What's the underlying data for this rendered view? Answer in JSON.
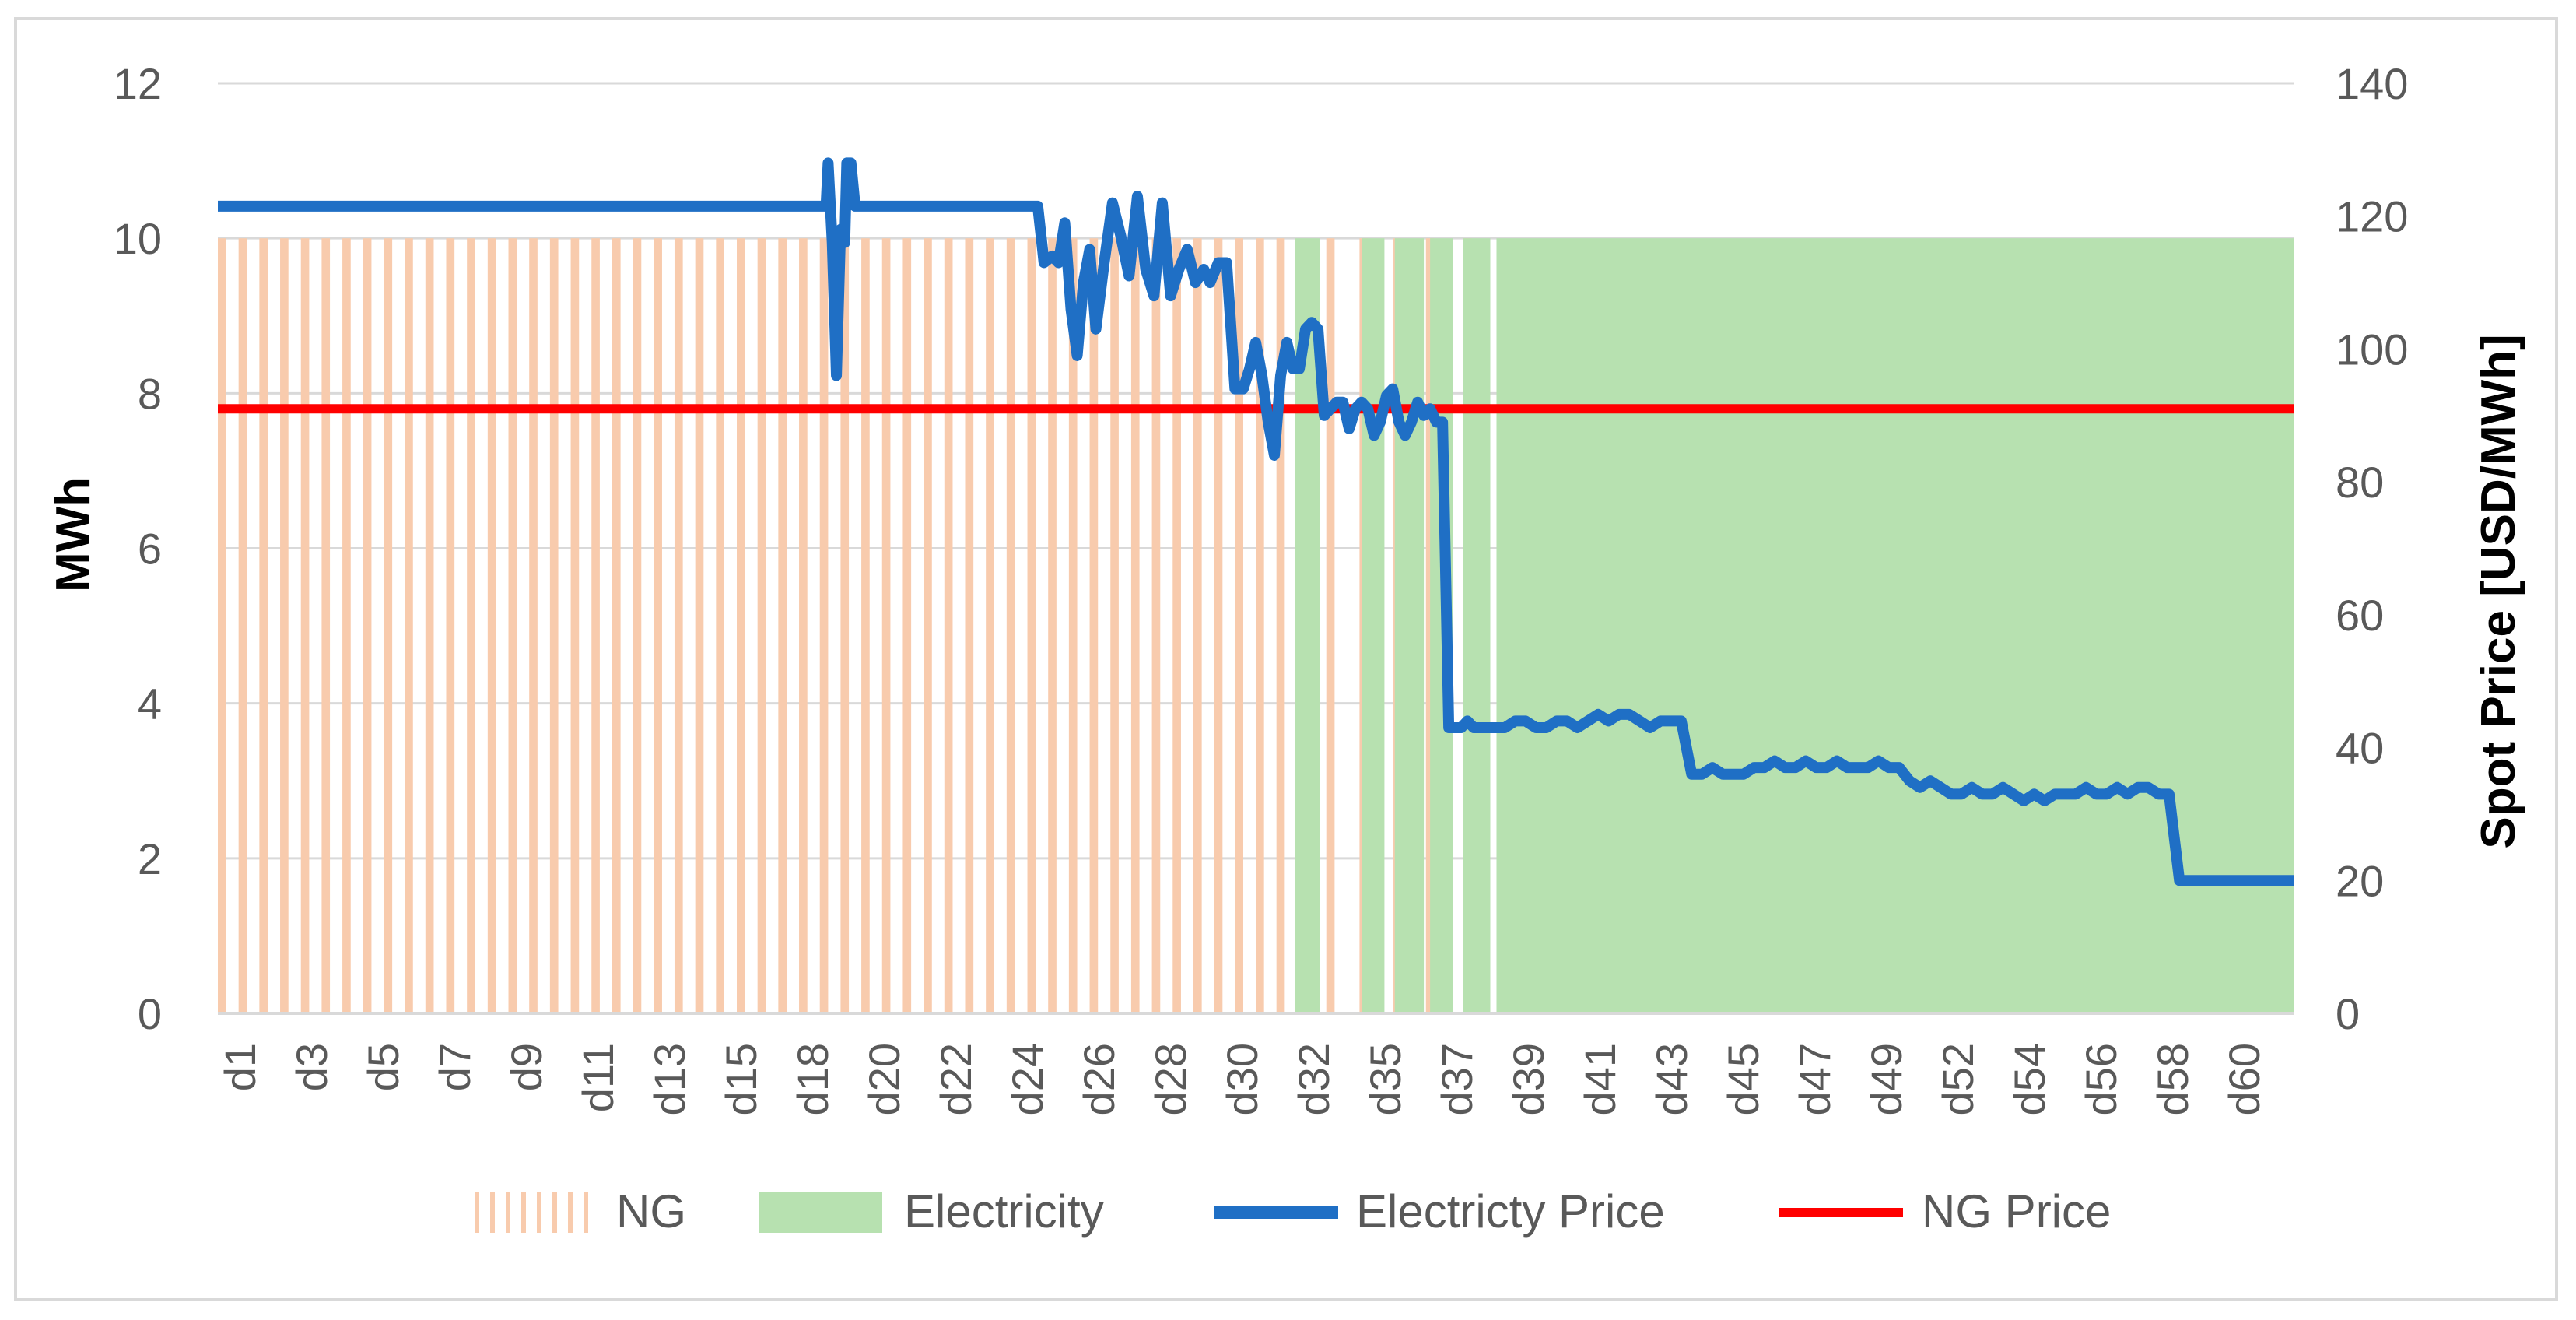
{
  "chart_data": {
    "type": "bar+line",
    "title": "",
    "categories": [
      "d1",
      "d2",
      "d3",
      "d4",
      "d5",
      "d6",
      "d7",
      "d8",
      "d9",
      "d10",
      "d11",
      "d12",
      "d13",
      "d14",
      "d15",
      "d16",
      "d17",
      "d18",
      "d19",
      "d20",
      "d21",
      "d22",
      "d23",
      "d24",
      "d25",
      "d26",
      "d27",
      "d28",
      "d29",
      "d30",
      "d31",
      "d32",
      "d33",
      "d34",
      "d35",
      "d36",
      "d37",
      "d38",
      "d39",
      "d40",
      "d41",
      "d42",
      "d43",
      "d44",
      "d45",
      "d46",
      "d47",
      "d48",
      "d49",
      "d50",
      "d51",
      "d52",
      "d53",
      "d54",
      "d55",
      "d56",
      "d57",
      "d58",
      "d59",
      "d60",
      "d61"
    ],
    "tick_labels": [
      "d1",
      "d3",
      "d5",
      "d7",
      "d9",
      "d11",
      "d13",
      "d15",
      "d18",
      "d20",
      "d22",
      "d24",
      "d26",
      "d28",
      "d30",
      "d32",
      "d35",
      "d37",
      "d39",
      "d41",
      "d43",
      "d45",
      "d47",
      "d49",
      "d52",
      "d54",
      "d56",
      "d58",
      "d60"
    ],
    "left_axis": {
      "label": "MWh",
      "min": 0,
      "max": 12,
      "step": 2,
      "ticks": [
        "0",
        "2",
        "4",
        "6",
        "8",
        "10",
        "12"
      ]
    },
    "right_axis": {
      "label": "Spot Price [USD/MWh]",
      "min": 0,
      "max": 140,
      "step": 20,
      "ticks": [
        "0",
        "20",
        "40",
        "60",
        "80",
        "100",
        "120",
        "140"
      ]
    },
    "series": [
      {
        "name": "NG",
        "kind": "bar",
        "axis": "left",
        "color": "#f8cbad",
        "note": "NG hatched bars occupy the domain 0.0-0.519; each value is 10 MWh",
        "bars": [
          {
            "x0": 0.0,
            "x1": 0.004,
            "v": 10
          },
          {
            "x0": 0.01,
            "x1": 0.014,
            "v": 10
          },
          {
            "x0": 0.02,
            "x1": 0.024,
            "v": 10
          },
          {
            "x0": 0.03,
            "x1": 0.034,
            "v": 10
          },
          {
            "x0": 0.04,
            "x1": 0.044,
            "v": 10
          },
          {
            "x0": 0.05,
            "x1": 0.054,
            "v": 10
          },
          {
            "x0": 0.06,
            "x1": 0.064,
            "v": 10
          },
          {
            "x0": 0.07,
            "x1": 0.074,
            "v": 10
          },
          {
            "x0": 0.08,
            "x1": 0.084,
            "v": 10
          },
          {
            "x0": 0.09,
            "x1": 0.094,
            "v": 10
          },
          {
            "x0": 0.1,
            "x1": 0.104,
            "v": 10
          },
          {
            "x0": 0.11,
            "x1": 0.114,
            "v": 10
          },
          {
            "x0": 0.12,
            "x1": 0.124,
            "v": 10
          },
          {
            "x0": 0.13,
            "x1": 0.134,
            "v": 10
          },
          {
            "x0": 0.14,
            "x1": 0.144,
            "v": 10
          },
          {
            "x0": 0.15,
            "x1": 0.154,
            "v": 10
          },
          {
            "x0": 0.16,
            "x1": 0.164,
            "v": 10
          },
          {
            "x0": 0.17,
            "x1": 0.174,
            "v": 10
          },
          {
            "x0": 0.18,
            "x1": 0.184,
            "v": 10
          },
          {
            "x0": 0.19,
            "x1": 0.194,
            "v": 10
          },
          {
            "x0": 0.2,
            "x1": 0.204,
            "v": 10
          },
          {
            "x0": 0.21,
            "x1": 0.214,
            "v": 10
          },
          {
            "x0": 0.22,
            "x1": 0.224,
            "v": 10
          },
          {
            "x0": 0.23,
            "x1": 0.234,
            "v": 10
          },
          {
            "x0": 0.24,
            "x1": 0.244,
            "v": 10
          },
          {
            "x0": 0.25,
            "x1": 0.254,
            "v": 10
          },
          {
            "x0": 0.26,
            "x1": 0.264,
            "v": 10
          },
          {
            "x0": 0.27,
            "x1": 0.274,
            "v": 10
          },
          {
            "x0": 0.28,
            "x1": 0.284,
            "v": 10
          },
          {
            "x0": 0.29,
            "x1": 0.294,
            "v": 10
          },
          {
            "x0": 0.3,
            "x1": 0.304,
            "v": 10
          },
          {
            "x0": 0.31,
            "x1": 0.314,
            "v": 10
          },
          {
            "x0": 0.32,
            "x1": 0.324,
            "v": 10
          },
          {
            "x0": 0.33,
            "x1": 0.334,
            "v": 10
          },
          {
            "x0": 0.34,
            "x1": 0.344,
            "v": 10
          },
          {
            "x0": 0.35,
            "x1": 0.354,
            "v": 10
          },
          {
            "x0": 0.36,
            "x1": 0.364,
            "v": 10
          },
          {
            "x0": 0.37,
            "x1": 0.374,
            "v": 10
          },
          {
            "x0": 0.38,
            "x1": 0.384,
            "v": 10
          },
          {
            "x0": 0.39,
            "x1": 0.394,
            "v": 10
          },
          {
            "x0": 0.4,
            "x1": 0.404,
            "v": 10
          },
          {
            "x0": 0.41,
            "x1": 0.414,
            "v": 10
          },
          {
            "x0": 0.42,
            "x1": 0.424,
            "v": 10
          },
          {
            "x0": 0.43,
            "x1": 0.434,
            "v": 10
          },
          {
            "x0": 0.44,
            "x1": 0.444,
            "v": 10
          },
          {
            "x0": 0.45,
            "x1": 0.454,
            "v": 10
          },
          {
            "x0": 0.46,
            "x1": 0.464,
            "v": 10
          },
          {
            "x0": 0.47,
            "x1": 0.474,
            "v": 10
          },
          {
            "x0": 0.48,
            "x1": 0.484,
            "v": 10
          },
          {
            "x0": 0.49,
            "x1": 0.494,
            "v": 10
          },
          {
            "x0": 0.5,
            "x1": 0.504,
            "v": 10
          },
          {
            "x0": 0.51,
            "x1": 0.514,
            "v": 10
          },
          {
            "x0": 0.534,
            "x1": 0.538,
            "v": 10
          },
          {
            "x0": 0.55,
            "x1": 0.554,
            "v": 10
          },
          {
            "x0": 0.566,
            "x1": 0.57,
            "v": 10
          },
          {
            "x0": 0.582,
            "x1": 0.586,
            "v": 10
          },
          {
            "x0": 0.6,
            "x1": 0.604,
            "v": 10
          }
        ]
      },
      {
        "name": "Electricity",
        "kind": "bar",
        "axis": "left",
        "color": "#b7e1b0",
        "bars": [
          {
            "x0": 0.519,
            "x1": 0.531,
            "v": 10
          },
          {
            "x0": 0.551,
            "x1": 0.562,
            "v": 10
          },
          {
            "x0": 0.567,
            "x1": 0.581,
            "v": 10
          },
          {
            "x0": 0.584,
            "x1": 0.595,
            "v": 10
          },
          {
            "x0": 0.6,
            "x1": 0.613,
            "v": 10
          },
          {
            "x0": 0.616,
            "x1": 1.0,
            "v": 10
          }
        ]
      },
      {
        "name": "Electricty Price",
        "kind": "line",
        "axis": "right",
        "color": "#1f6fc5",
        "points": [
          [
            0.0,
            121.5
          ],
          [
            0.293,
            121.5
          ],
          [
            0.294,
            128
          ],
          [
            0.296,
            116
          ],
          [
            0.298,
            96
          ],
          [
            0.3,
            118
          ],
          [
            0.302,
            116
          ],
          [
            0.303,
            128
          ],
          [
            0.305,
            128
          ],
          [
            0.307,
            121.5
          ],
          [
            0.31,
            121.5
          ],
          [
            0.395,
            121.5
          ],
          [
            0.398,
            113
          ],
          [
            0.402,
            114
          ],
          [
            0.405,
            113
          ],
          [
            0.408,
            119
          ],
          [
            0.411,
            106
          ],
          [
            0.414,
            99
          ],
          [
            0.417,
            110
          ],
          [
            0.42,
            115
          ],
          [
            0.423,
            103
          ],
          [
            0.427,
            113
          ],
          [
            0.431,
            122
          ],
          [
            0.435,
            117
          ],
          [
            0.439,
            111
          ],
          [
            0.443,
            123
          ],
          [
            0.447,
            112
          ],
          [
            0.451,
            108
          ],
          [
            0.455,
            122
          ],
          [
            0.459,
            108
          ],
          [
            0.463,
            112
          ],
          [
            0.467,
            115
          ],
          [
            0.471,
            110
          ],
          [
            0.475,
            112
          ],
          [
            0.478,
            110
          ],
          [
            0.482,
            113
          ],
          [
            0.486,
            113
          ],
          [
            0.49,
            94
          ],
          [
            0.494,
            94
          ],
          [
            0.497,
            97
          ],
          [
            0.5,
            101
          ],
          [
            0.503,
            96
          ],
          [
            0.506,
            89
          ],
          [
            0.509,
            84
          ],
          [
            0.512,
            96
          ],
          [
            0.515,
            101
          ],
          [
            0.518,
            97
          ],
          [
            0.521,
            97
          ],
          [
            0.524,
            103
          ],
          [
            0.527,
            104
          ],
          [
            0.53,
            103
          ],
          [
            0.533,
            90
          ],
          [
            0.536,
            91
          ],
          [
            0.539,
            92
          ],
          [
            0.542,
            92
          ],
          [
            0.545,
            88
          ],
          [
            0.548,
            91
          ],
          [
            0.551,
            92
          ],
          [
            0.554,
            91
          ],
          [
            0.557,
            87
          ],
          [
            0.56,
            89
          ],
          [
            0.563,
            93
          ],
          [
            0.566,
            94
          ],
          [
            0.569,
            89
          ],
          [
            0.572,
            87
          ],
          [
            0.575,
            89
          ],
          [
            0.578,
            92
          ],
          [
            0.581,
            90
          ],
          [
            0.584,
            91
          ],
          [
            0.587,
            89
          ],
          [
            0.59,
            89
          ],
          [
            0.593,
            43
          ],
          [
            0.596,
            43
          ],
          [
            0.599,
            43
          ],
          [
            0.602,
            44
          ],
          [
            0.605,
            43
          ],
          [
            0.61,
            43
          ],
          [
            0.615,
            43
          ],
          [
            0.62,
            43
          ],
          [
            0.625,
            44
          ],
          [
            0.63,
            44
          ],
          [
            0.635,
            43
          ],
          [
            0.64,
            43
          ],
          [
            0.645,
            44
          ],
          [
            0.65,
            44
          ],
          [
            0.655,
            43
          ],
          [
            0.66,
            44
          ],
          [
            0.665,
            45
          ],
          [
            0.67,
            44
          ],
          [
            0.675,
            45
          ],
          [
            0.68,
            45
          ],
          [
            0.685,
            44
          ],
          [
            0.69,
            43
          ],
          [
            0.695,
            44
          ],
          [
            0.7,
            44
          ],
          [
            0.705,
            44
          ],
          [
            0.71,
            36
          ],
          [
            0.715,
            36
          ],
          [
            0.72,
            37
          ],
          [
            0.725,
            36
          ],
          [
            0.73,
            36
          ],
          [
            0.735,
            36
          ],
          [
            0.74,
            37
          ],
          [
            0.745,
            37
          ],
          [
            0.75,
            38
          ],
          [
            0.755,
            37
          ],
          [
            0.76,
            37
          ],
          [
            0.765,
            38
          ],
          [
            0.77,
            37
          ],
          [
            0.775,
            37
          ],
          [
            0.78,
            38
          ],
          [
            0.785,
            37
          ],
          [
            0.79,
            37
          ],
          [
            0.795,
            37
          ],
          [
            0.8,
            38
          ],
          [
            0.805,
            37
          ],
          [
            0.81,
            37
          ],
          [
            0.815,
            35
          ],
          [
            0.82,
            34
          ],
          [
            0.825,
            35
          ],
          [
            0.83,
            34
          ],
          [
            0.835,
            33
          ],
          [
            0.84,
            33
          ],
          [
            0.845,
            34
          ],
          [
            0.85,
            33
          ],
          [
            0.855,
            33
          ],
          [
            0.86,
            34
          ],
          [
            0.865,
            33
          ],
          [
            0.87,
            32
          ],
          [
            0.875,
            33
          ],
          [
            0.88,
            32
          ],
          [
            0.885,
            33
          ],
          [
            0.89,
            33
          ],
          [
            0.895,
            33
          ],
          [
            0.9,
            34
          ],
          [
            0.905,
            33
          ],
          [
            0.91,
            33
          ],
          [
            0.915,
            34
          ],
          [
            0.92,
            33
          ],
          [
            0.925,
            34
          ],
          [
            0.93,
            34
          ],
          [
            0.935,
            33
          ],
          [
            0.94,
            33
          ],
          [
            0.945,
            20
          ],
          [
            0.95,
            20
          ],
          [
            0.955,
            20
          ],
          [
            0.96,
            20
          ],
          [
            0.965,
            20
          ],
          [
            0.97,
            20
          ],
          [
            0.975,
            20
          ],
          [
            0.98,
            20
          ],
          [
            0.985,
            20
          ],
          [
            0.99,
            20
          ],
          [
            1.0,
            20
          ]
        ]
      },
      {
        "name": "NG Price",
        "kind": "line",
        "axis": "right",
        "color": "#ff0000",
        "points": [
          [
            0.0,
            91
          ],
          [
            1.0,
            91
          ]
        ]
      }
    ],
    "legend": {
      "position": "bottom",
      "entries": [
        "NG",
        "Electricity",
        "Electricty Price",
        "NG Price"
      ]
    },
    "grid": true
  }
}
